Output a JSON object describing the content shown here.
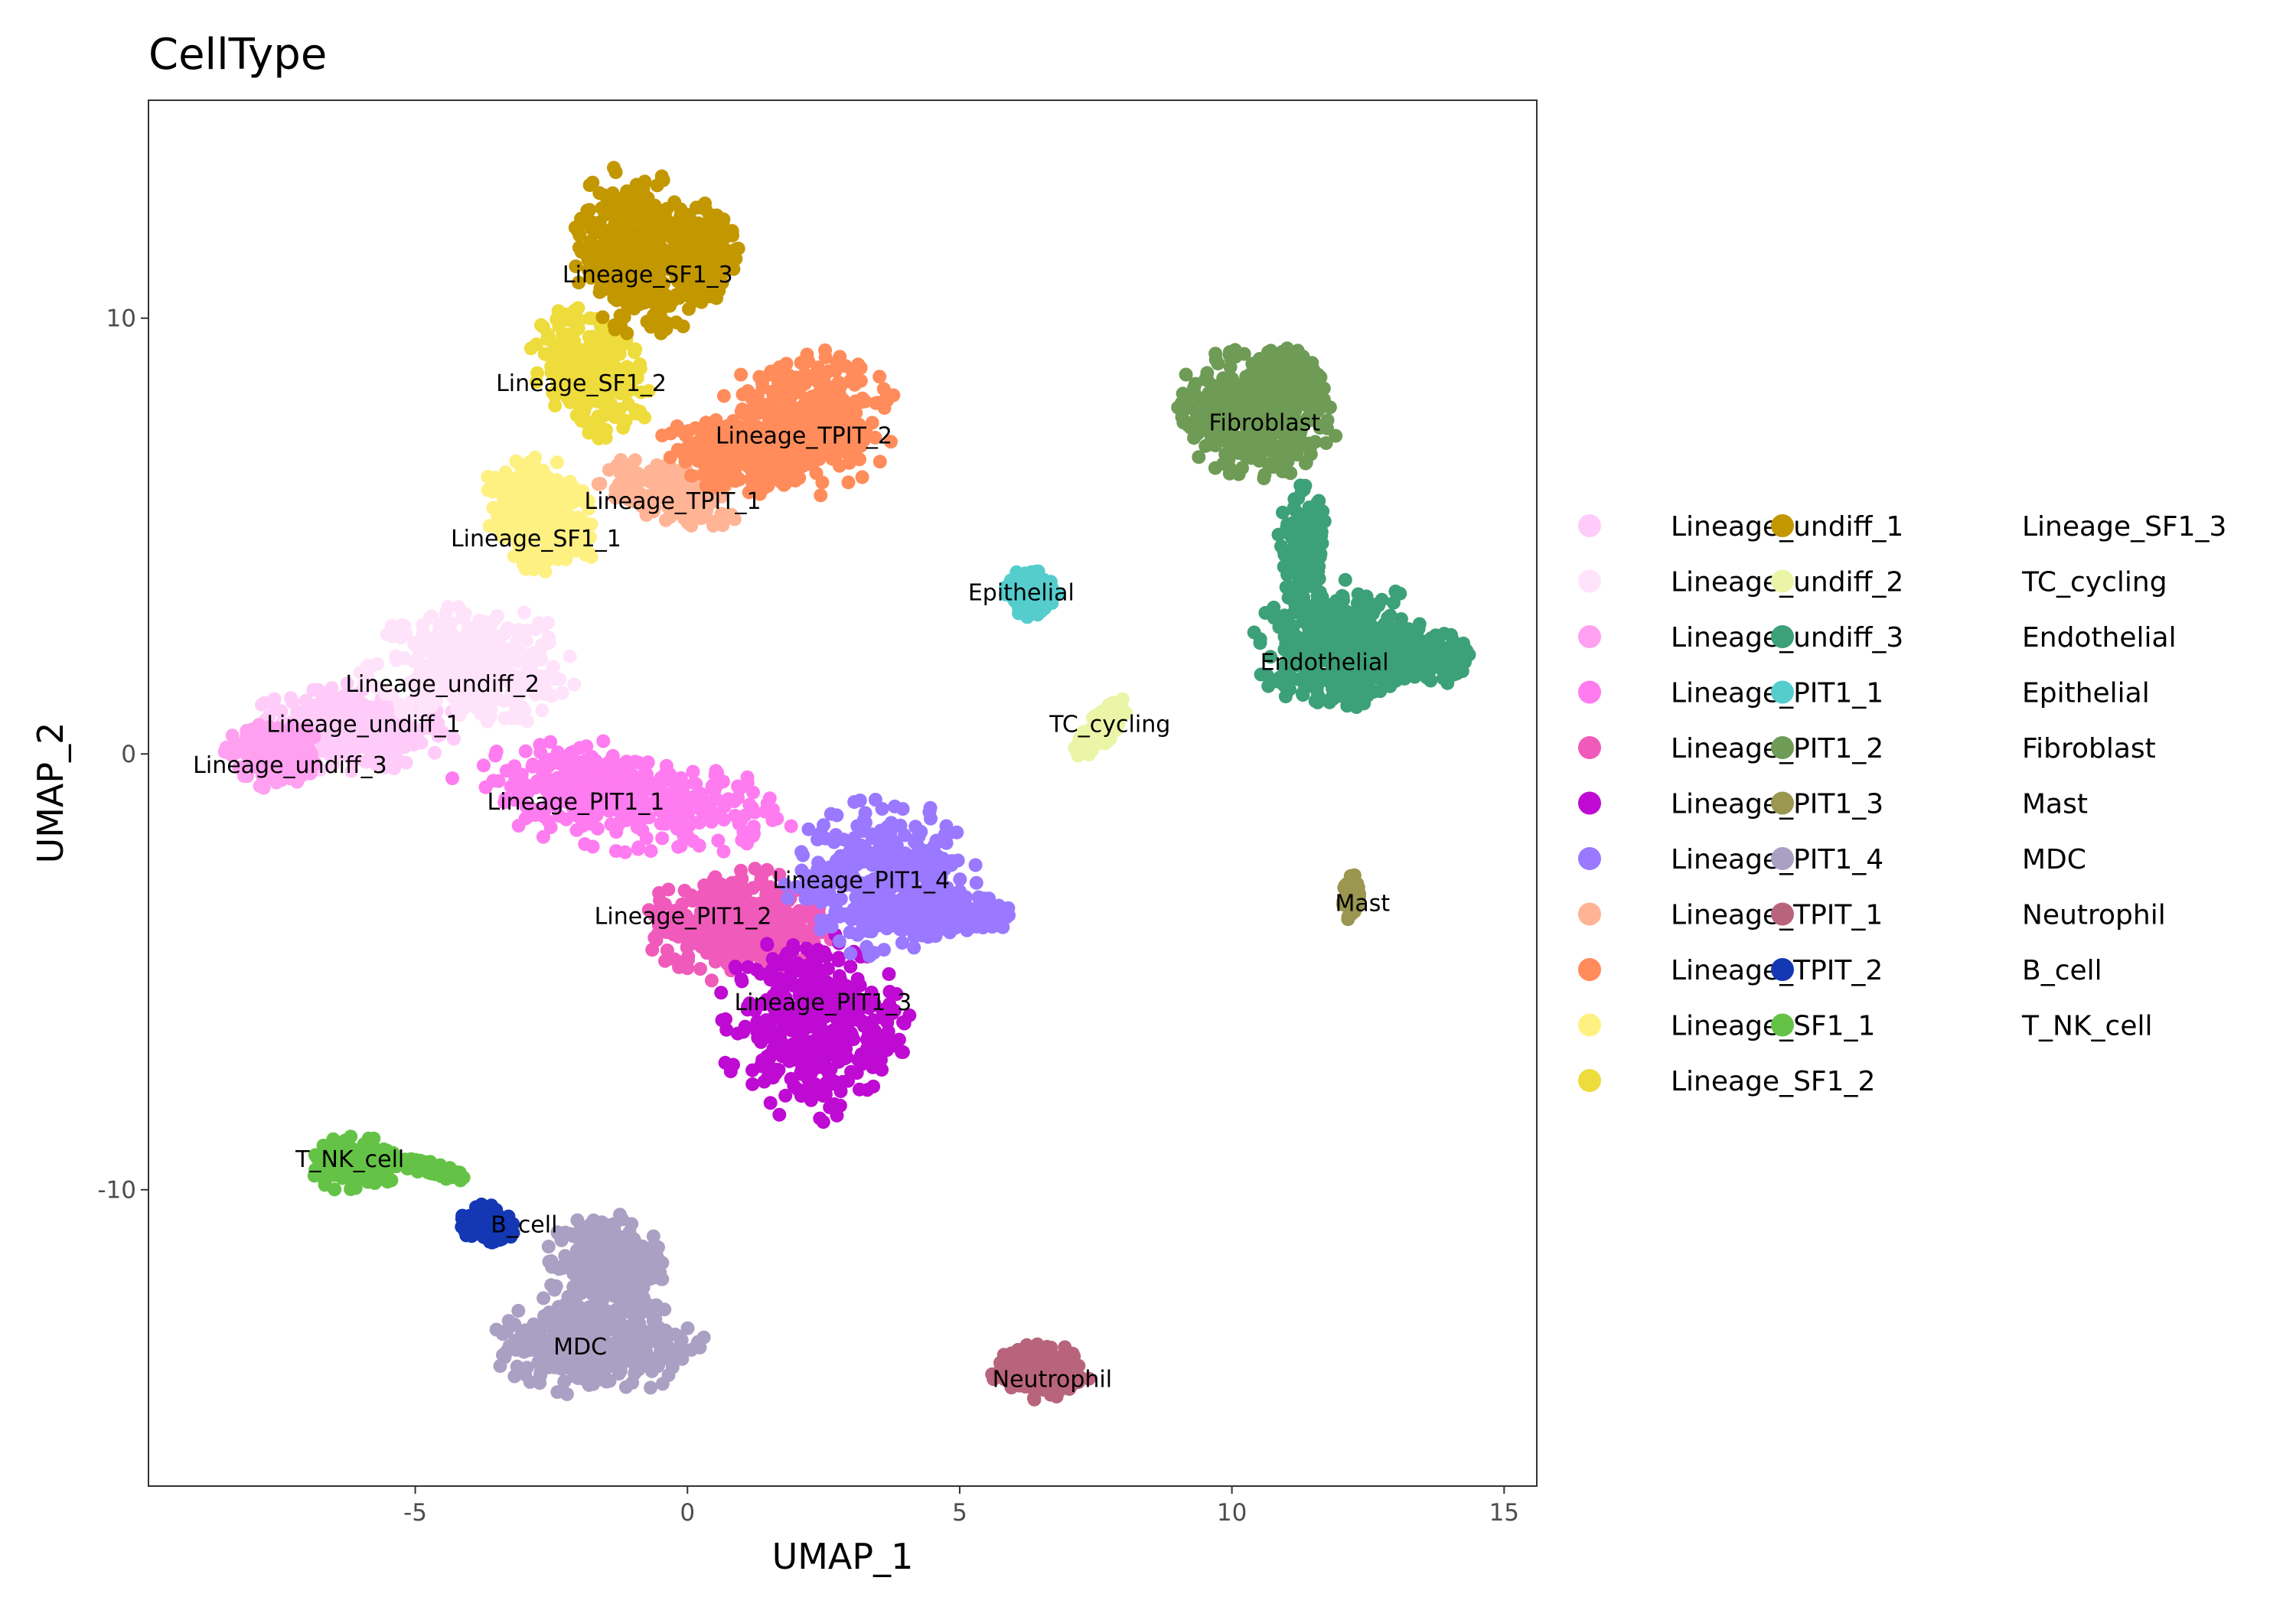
{
  "chart_data": {
    "type": "scatter",
    "title": "CellType",
    "xlabel": "UMAP_1",
    "ylabel": "UMAP_2",
    "xlim": [
      -9.9,
      15.6
    ],
    "ylim": [
      -16.8,
      15.0
    ],
    "xticks": [
      -5,
      0,
      5,
      10,
      15
    ],
    "yticks": [
      -10,
      0,
      10
    ],
    "xtick_labels": [
      "-5",
      "0",
      "5",
      "10",
      "15"
    ],
    "ytick_labels": [
      "-10",
      "0",
      "10"
    ],
    "grid": false,
    "legend_position": "right",
    "clusters": [
      {
        "name": "Lineage_undiff_1",
        "color": "#FFCCF9",
        "label_at": [
          -5.95,
          0.68
        ],
        "regions": [
          [
            -6.2,
            0.6,
            1.8,
            0.9,
            0
          ]
        ]
      },
      {
        "name": "Lineage_undiff_2",
        "color": "#FFE3FA",
        "label_at": [
          -4.5,
          0.9
        ],
        "regions": [
          [
            -4.0,
            2.0,
            1.8,
            1.3,
            0
          ]
        ]
      },
      {
        "name": "Lineage_undiff_3",
        "color": "#FFA0F0",
        "label_at": [
          -7.3,
          -0.26
        ],
        "regions": [
          [
            -7.6,
            0.0,
            0.8,
            0.7,
            0
          ]
        ]
      },
      {
        "name": "Lineage_PIT1_1",
        "color": "#FF7BF0",
        "label_at": [
          -2.05,
          -1.1
        ],
        "regions": [
          [
            -1.2,
            -1.0,
            2.8,
            1.1,
            -10
          ]
        ]
      },
      {
        "name": "Lineage_PIT1_2",
        "color": "#F05ABB",
        "label_at": [
          -0.08,
          -3.73
        ],
        "regions": [
          [
            0.9,
            -3.9,
            1.6,
            1.2,
            0
          ]
        ]
      },
      {
        "name": "Lineage_PIT1_3",
        "color": "#BE0AD2",
        "label_at": [
          2.49,
          -5.7
        ],
        "regions": [
          [
            2.3,
            -6.2,
            1.6,
            2.0,
            0
          ]
        ]
      },
      {
        "name": "Lineage_PIT1_4",
        "color": "#9A78FF",
        "label_at": [
          3.19,
          -2.9
        ],
        "regions": [
          [
            3.6,
            -2.9,
            1.6,
            1.7,
            0
          ],
          [
            5.2,
            -3.7,
            0.8,
            0.4,
            0
          ]
        ]
      },
      {
        "name": "Lineage_TPIT_1",
        "color": "#FFB496",
        "label_at": [
          -0.27,
          5.8
        ],
        "regions": [
          [
            -0.3,
            6.0,
            1.3,
            0.6,
            -20
          ]
        ]
      },
      {
        "name": "Lineage_TPIT_2",
        "color": "#FF8C5A",
        "label_at": [
          2.14,
          7.3
        ],
        "regions": [
          [
            2.2,
            7.6,
            1.5,
            1.5,
            0
          ],
          [
            0.8,
            6.8,
            1.2,
            0.7,
            -20
          ]
        ]
      },
      {
        "name": "Lineage_SF1_1",
        "color": "#FFF082",
        "label_at": [
          -2.5,
          5.64
        ],
        "regions": [
          [
            -2.7,
            5.5,
            0.9,
            1.3,
            20
          ]
        ]
      },
      {
        "name": "Lineage_SF1_2",
        "color": "#EEDC3C",
        "label_at": [
          -1.95,
          8.5
        ],
        "regions": [
          [
            -1.8,
            8.7,
            0.9,
            1.4,
            20
          ]
        ]
      },
      {
        "name": "Lineage_SF1_3",
        "color": "#C39700",
        "label_at": [
          -0.73,
          11.0
        ],
        "regions": [
          [
            -0.9,
            11.5,
            1.1,
            1.8,
            10
          ],
          [
            0.3,
            11.5,
            0.6,
            1.0,
            0
          ]
        ]
      },
      {
        "name": "TC_cycling",
        "color": "#EBF5A8",
        "label_at": [
          7.76,
          0.68
        ],
        "regions": [
          [
            7.6,
            0.6,
            0.25,
            0.7,
            -35
          ]
        ]
      },
      {
        "name": "Endothelial",
        "color": "#3CA078",
        "label_at": [
          11.7,
          2.1
        ],
        "regions": [
          [
            12.0,
            2.5,
            1.5,
            1.4,
            0
          ],
          [
            13.5,
            2.2,
            0.8,
            0.6,
            0
          ],
          [
            11.3,
            4.8,
            0.4,
            1.2,
            0
          ]
        ]
      },
      {
        "name": "Epithelial",
        "color": "#55CDCD",
        "label_at": [
          6.13,
          3.7
        ],
        "regions": [
          [
            6.3,
            3.7,
            0.5,
            0.5,
            0
          ]
        ]
      },
      {
        "name": "Fibroblast",
        "color": "#6E9B55",
        "label_at": [
          10.6,
          7.6
        ],
        "regions": [
          [
            10.4,
            7.8,
            1.4,
            1.3,
            -30
          ],
          [
            11.0,
            8.5,
            0.6,
            0.8,
            0
          ]
        ]
      },
      {
        "name": "Mast",
        "color": "#9B9650",
        "label_at": [
          12.4,
          -3.43
        ],
        "regions": [
          [
            12.2,
            -3.3,
            0.15,
            0.5,
            0
          ]
        ]
      },
      {
        "name": "MDC",
        "color": "#AAA0C3",
        "label_at": [
          -1.97,
          -13.6
        ],
        "regions": [
          [
            -1.7,
            -13.5,
            1.8,
            1.1,
            0
          ],
          [
            -1.5,
            -11.7,
            1.0,
            1.1,
            0
          ]
        ]
      },
      {
        "name": "Neutrophil",
        "color": "#B9647D",
        "label_at": [
          6.7,
          -14.35
        ],
        "regions": [
          [
            6.5,
            -14.2,
            0.8,
            0.6,
            0
          ]
        ]
      },
      {
        "name": "B_cell",
        "color": "#1437B4",
        "label_at": [
          -3.0,
          -10.8
        ],
        "regions": [
          [
            -3.7,
            -10.8,
            0.5,
            0.4,
            -30
          ]
        ]
      },
      {
        "name": "T_NK_cell",
        "color": "#64C346",
        "label_at": [
          -6.2,
          -9.3
        ],
        "regions": [
          [
            -6.1,
            -9.4,
            0.8,
            0.6,
            0
          ],
          [
            -4.8,
            -9.5,
            0.9,
            0.15,
            -15
          ]
        ]
      }
    ]
  }
}
